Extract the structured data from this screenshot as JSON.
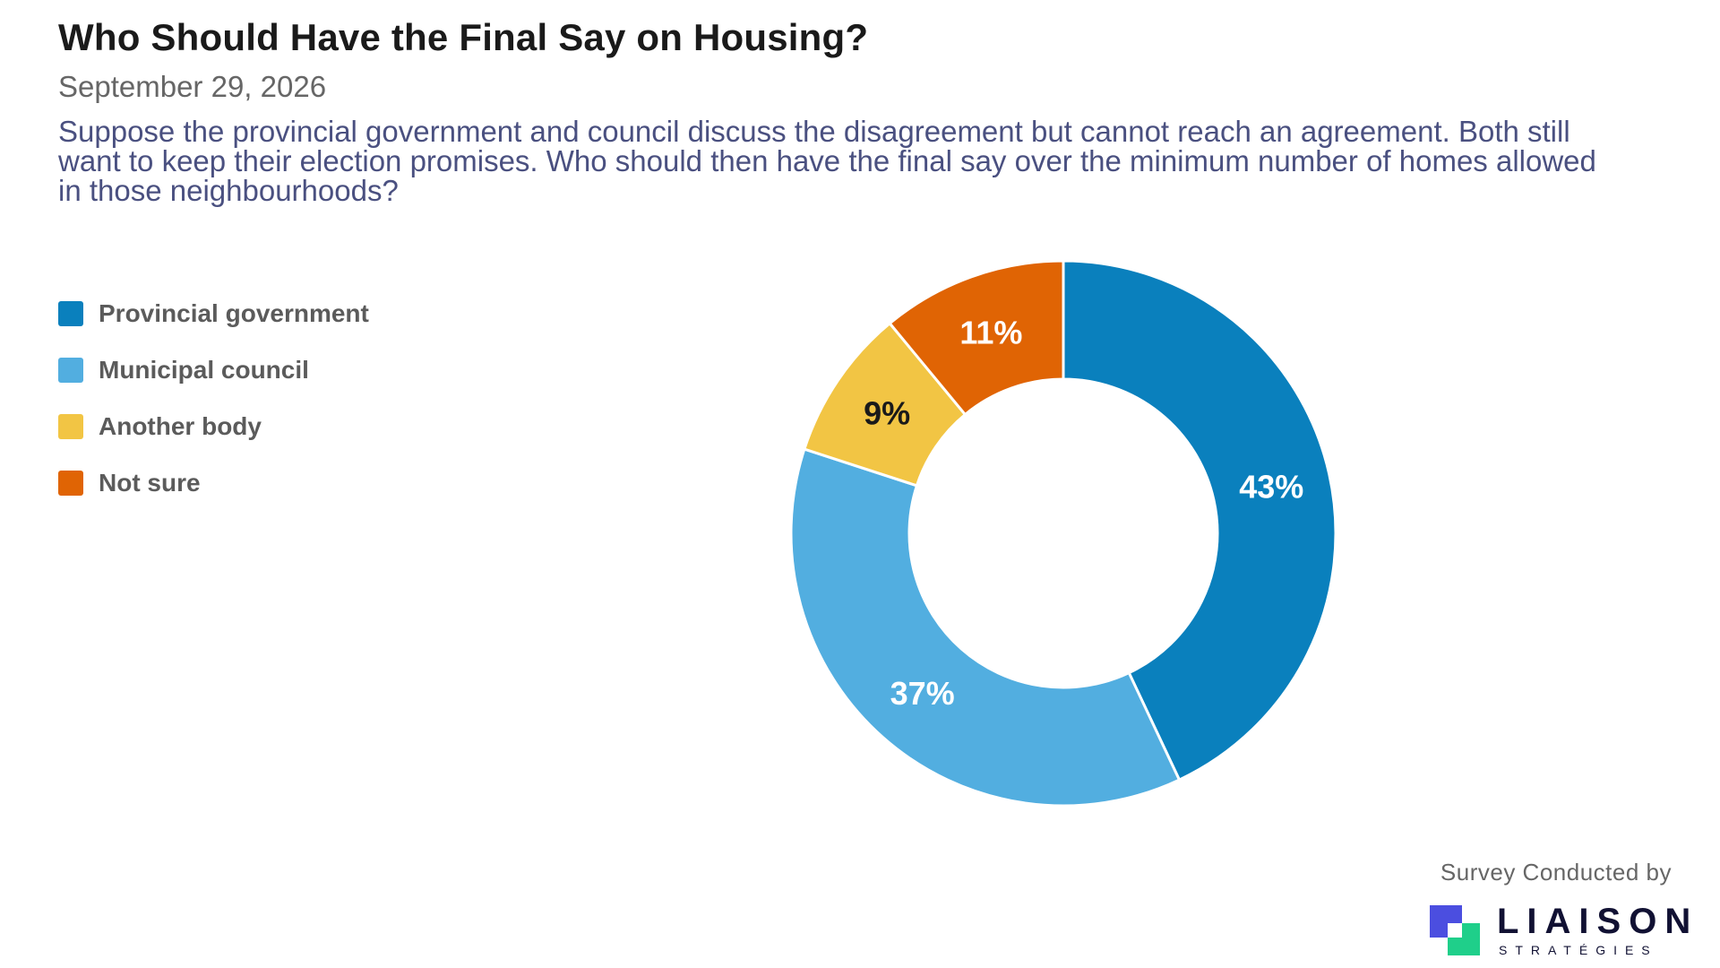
{
  "header": {
    "title": "Who Should Have the Final Say on Housing?",
    "date": "September 29, 2026",
    "question": "Suppose the provincial government and council discuss the disagreement but cannot reach an agreement. Both still want to keep their election promises. Who should then have the final say over the minimum number of homes allowed in those neighbourhoods?"
  },
  "chart_data": {
    "type": "pie",
    "donut": true,
    "legend_position": "left",
    "categories": [
      "Provincial government",
      "Municipal council",
      "Another body",
      "Not sure"
    ],
    "values": [
      43,
      37,
      9,
      11
    ],
    "labels": [
      "43%",
      "37%",
      "9%",
      "11%"
    ],
    "colors": [
      "#0a80bd",
      "#52aee0",
      "#f2c544",
      "#e06404"
    ],
    "label_colors": [
      "#ffffff",
      "#ffffff",
      "#1a1a1a",
      "#ffffff"
    ]
  },
  "footer": {
    "credit": "Survey Conducted by",
    "logo_name": "LIAISON",
    "logo_sub": "STRATÉGIES",
    "logo_colors": [
      "#4b4ee0",
      "#1fcf8a"
    ]
  }
}
